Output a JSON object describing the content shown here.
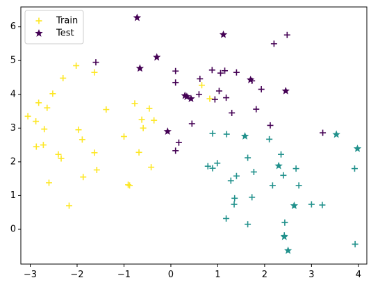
{
  "chart_data": {
    "type": "scatter",
    "title": "",
    "xlabel": "",
    "ylabel": "",
    "xlim": [
      -3.2,
      4.18
    ],
    "ylim": [
      -1.03,
      6.59
    ],
    "xticks": [
      -3,
      -2,
      -1,
      0,
      1,
      2,
      3,
      4
    ],
    "yticks": [
      0,
      1,
      2,
      3,
      4,
      5,
      6
    ],
    "grid": false,
    "legend_position": "top-left",
    "series": [
      {
        "name": "Train",
        "marker": "plus",
        "legend_color": "#fde725",
        "points": [
          {
            "x": -3.05,
            "y": 3.35,
            "c": "#fde725"
          },
          {
            "x": -2.88,
            "y": 3.2,
            "c": "#fde725"
          },
          {
            "x": -2.82,
            "y": 3.75,
            "c": "#fde725"
          },
          {
            "x": -2.87,
            "y": 2.45,
            "c": "#fde725"
          },
          {
            "x": -2.72,
            "y": 2.5,
            "c": "#fde725"
          },
          {
            "x": -2.7,
            "y": 2.97,
            "c": "#fde725"
          },
          {
            "x": -2.64,
            "y": 3.6,
            "c": "#fde725"
          },
          {
            "x": -2.52,
            "y": 4.02,
            "c": "#fde725"
          },
          {
            "x": -2.4,
            "y": 2.22,
            "c": "#fde725"
          },
          {
            "x": -2.34,
            "y": 2.1,
            "c": "#fde725"
          },
          {
            "x": -2.3,
            "y": 4.48,
            "c": "#fde725"
          },
          {
            "x": -2.6,
            "y": 1.38,
            "c": "#fde725"
          },
          {
            "x": -2.17,
            "y": 0.7,
            "c": "#fde725"
          },
          {
            "x": -2.02,
            "y": 4.85,
            "c": "#fde725"
          },
          {
            "x": -1.97,
            "y": 2.95,
            "c": "#fde725"
          },
          {
            "x": -1.89,
            "y": 2.66,
            "c": "#fde725"
          },
          {
            "x": -1.87,
            "y": 1.55,
            "c": "#fde725"
          },
          {
            "x": -1.63,
            "y": 4.65,
            "c": "#fde725"
          },
          {
            "x": -1.63,
            "y": 2.27,
            "c": "#fde725"
          },
          {
            "x": -1.58,
            "y": 1.76,
            "c": "#fde725"
          },
          {
            "x": -1.38,
            "y": 3.55,
            "c": "#fde725"
          },
          {
            "x": -1.0,
            "y": 2.75,
            "c": "#fde725"
          },
          {
            "x": -0.91,
            "y": 1.32,
            "c": "#fde725"
          },
          {
            "x": -0.88,
            "y": 1.3,
            "c": "#fde725"
          },
          {
            "x": -0.77,
            "y": 3.73,
            "c": "#fde725"
          },
          {
            "x": -0.68,
            "y": 2.28,
            "c": "#fde725"
          },
          {
            "x": -0.62,
            "y": 3.25,
            "c": "#fde725"
          },
          {
            "x": -0.59,
            "y": 3.0,
            "c": "#fde725"
          },
          {
            "x": -0.46,
            "y": 3.58,
            "c": "#fde725"
          },
          {
            "x": -0.42,
            "y": 1.84,
            "c": "#fde725"
          },
          {
            "x": -0.36,
            "y": 3.23,
            "c": "#fde725"
          },
          {
            "x": 0.66,
            "y": 4.27,
            "c": "#fde725"
          },
          {
            "x": 0.83,
            "y": 3.87,
            "c": "#fde725"
          },
          {
            "x": 0.1,
            "y": 4.35,
            "c": "#440154"
          },
          {
            "x": 0.1,
            "y": 4.69,
            "c": "#440154"
          },
          {
            "x": 0.1,
            "y": 2.33,
            "c": "#440154"
          },
          {
            "x": 0.17,
            "y": 2.57,
            "c": "#440154"
          },
          {
            "x": 0.45,
            "y": 3.13,
            "c": "#440154"
          },
          {
            "x": 0.6,
            "y": 4.0,
            "c": "#440154"
          },
          {
            "x": 0.62,
            "y": 4.46,
            "c": "#440154"
          },
          {
            "x": 0.94,
            "y": 3.85,
            "c": "#440154"
          },
          {
            "x": 1.03,
            "y": 4.1,
            "c": "#440154"
          },
          {
            "x": 1.06,
            "y": 4.63,
            "c": "#440154"
          },
          {
            "x": 1.15,
            "y": 4.7,
            "c": "#440154"
          },
          {
            "x": 1.18,
            "y": 3.9,
            "c": "#440154"
          },
          {
            "x": 1.3,
            "y": 3.45,
            "c": "#440154"
          },
          {
            "x": 1.4,
            "y": 4.65,
            "c": "#440154"
          },
          {
            "x": 1.73,
            "y": 4.4,
            "c": "#440154"
          },
          {
            "x": 1.82,
            "y": 3.56,
            "c": "#440154"
          },
          {
            "x": 1.93,
            "y": 4.15,
            "c": "#440154"
          },
          {
            "x": 2.12,
            "y": 3.08,
            "c": "#440154"
          },
          {
            "x": 2.2,
            "y": 5.5,
            "c": "#440154"
          },
          {
            "x": 0.88,
            "y": 4.72,
            "c": "#440154"
          },
          {
            "x": 3.24,
            "y": 2.86,
            "c": "#440154"
          },
          {
            "x": 2.48,
            "y": 5.76,
            "c": "#440154"
          },
          {
            "x": -1.6,
            "y": 4.95,
            "c": "#440154"
          },
          {
            "x": 0.89,
            "y": 2.84,
            "c": "#21918c"
          },
          {
            "x": 1.19,
            "y": 2.82,
            "c": "#21918c"
          },
          {
            "x": 0.79,
            "y": 1.87,
            "c": "#21918c"
          },
          {
            "x": 0.89,
            "y": 1.81,
            "c": "#21918c"
          },
          {
            "x": 0.99,
            "y": 1.96,
            "c": "#21918c"
          },
          {
            "x": 1.28,
            "y": 1.44,
            "c": "#21918c"
          },
          {
            "x": 1.4,
            "y": 1.58,
            "c": "#21918c"
          },
          {
            "x": 1.36,
            "y": 0.92,
            "c": "#21918c"
          },
          {
            "x": 1.35,
            "y": 0.74,
            "c": "#21918c"
          },
          {
            "x": 1.18,
            "y": 0.32,
            "c": "#21918c"
          },
          {
            "x": 1.64,
            "y": 2.12,
            "c": "#21918c"
          },
          {
            "x": 1.77,
            "y": 1.7,
            "c": "#21918c"
          },
          {
            "x": 1.73,
            "y": 0.95,
            "c": "#21918c"
          },
          {
            "x": 1.64,
            "y": 0.15,
            "c": "#21918c"
          },
          {
            "x": 2.1,
            "y": 2.67,
            "c": "#21918c"
          },
          {
            "x": 2.17,
            "y": 1.3,
            "c": "#21918c"
          },
          {
            "x": 2.35,
            "y": 2.22,
            "c": "#21918c"
          },
          {
            "x": 2.4,
            "y": 1.6,
            "c": "#21918c"
          },
          {
            "x": 2.43,
            "y": 0.2,
            "c": "#21918c"
          },
          {
            "x": 2.42,
            "y": -0.18,
            "c": "#21918c"
          },
          {
            "x": 2.67,
            "y": 1.8,
            "c": "#21918c"
          },
          {
            "x": 2.73,
            "y": 1.3,
            "c": "#21918c"
          },
          {
            "x": 3.0,
            "y": 0.74,
            "c": "#21918c"
          },
          {
            "x": 3.23,
            "y": 0.72,
            "c": "#21918c"
          },
          {
            "x": 3.92,
            "y": 1.8,
            "c": "#21918c"
          },
          {
            "x": 3.93,
            "y": -0.44,
            "c": "#21918c"
          }
        ]
      },
      {
        "name": "Test",
        "marker": "star",
        "legend_color": "#440154",
        "points": [
          {
            "x": -0.72,
            "y": 6.27,
            "c": "#440154"
          },
          {
            "x": -0.66,
            "y": 4.77,
            "c": "#440154"
          },
          {
            "x": -0.3,
            "y": 5.1,
            "c": "#440154"
          },
          {
            "x": 1.12,
            "y": 5.77,
            "c": "#440154"
          },
          {
            "x": 0.3,
            "y": 3.96,
            "c": "#440154"
          },
          {
            "x": 0.34,
            "y": 3.93,
            "c": "#440154"
          },
          {
            "x": 0.43,
            "y": 3.87,
            "c": "#440154"
          },
          {
            "x": -0.07,
            "y": 2.9,
            "c": "#440154"
          },
          {
            "x": 1.7,
            "y": 4.43,
            "c": "#440154"
          },
          {
            "x": 2.45,
            "y": 4.1,
            "c": "#440154"
          },
          {
            "x": 1.58,
            "y": 2.76,
            "c": "#21918c"
          },
          {
            "x": 2.3,
            "y": 1.88,
            "c": "#21918c"
          },
          {
            "x": 2.63,
            "y": 0.7,
            "c": "#21918c"
          },
          {
            "x": 2.42,
            "y": -0.22,
            "c": "#21918c"
          },
          {
            "x": 2.5,
            "y": -0.63,
            "c": "#21918c"
          },
          {
            "x": 3.53,
            "y": 2.81,
            "c": "#21918c"
          },
          {
            "x": 3.98,
            "y": 2.39,
            "c": "#21918c"
          }
        ]
      }
    ]
  }
}
